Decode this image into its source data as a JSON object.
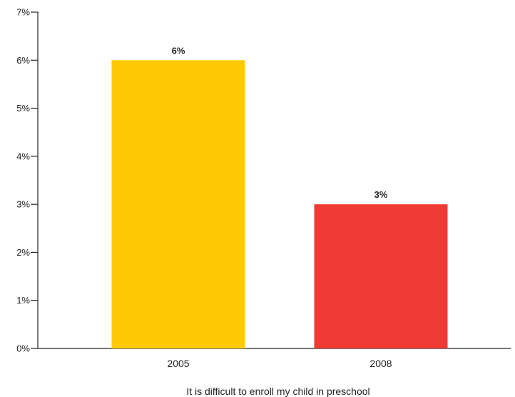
{
  "chart_data": {
    "type": "bar",
    "categories": [
      "2005",
      "2008"
    ],
    "values": [
      6,
      3
    ],
    "value_labels": [
      "6%",
      "3%"
    ],
    "bar_colors": [
      "#FFCA05",
      "#EE3B33"
    ],
    "title": "",
    "xlabel": "It is difficult to enroll my child in preschool",
    "ylabel": "",
    "ylim": [
      0,
      7
    ],
    "yticks": [
      0,
      1,
      2,
      3,
      4,
      5,
      6,
      7
    ],
    "ytick_labels": [
      "0%",
      "1%",
      "2%",
      "3%",
      "4%",
      "5%",
      "6%",
      "7%"
    ],
    "grid": false,
    "legend": "none"
  }
}
